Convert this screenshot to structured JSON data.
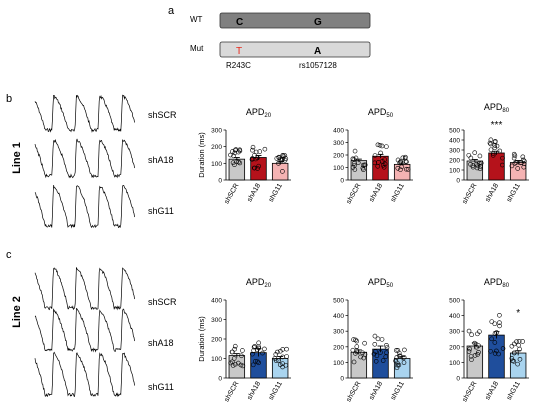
{
  "panels": {
    "a": "a",
    "b": "b",
    "c": "c"
  },
  "schematic": {
    "wt_label": "WT",
    "mut_label": "Mut",
    "wt_letters": [
      "C",
      "G"
    ],
    "mut_letters": [
      "T",
      "A"
    ],
    "variant_labels": [
      "R243C",
      "rs1057128"
    ],
    "colors": {
      "wt_bar": "#808080",
      "mut_bar": "#d9d9d9",
      "mutation": "#e8291c"
    }
  },
  "lines": [
    {
      "label": "Line 1",
      "traces": [
        "shSCR",
        "shA18",
        "shG11"
      ]
    },
    {
      "label": "Line 2",
      "traces": [
        "shSCR",
        "shA18",
        "shG11"
      ]
    }
  ],
  "chart_data": [
    {
      "type": "bar",
      "line": "Line 1",
      "title": "APD",
      "title_sub": "20",
      "ylabel": "Duration (ms)",
      "categories": [
        "shSCR",
        "shA18",
        "shG11"
      ],
      "values": [
        125,
        135,
        100
      ],
      "sem": [
        10,
        12,
        8
      ],
      "ylim": [
        0,
        300
      ],
      "yticks": [
        0,
        100,
        200,
        300
      ],
      "significance": [
        "",
        "",
        ""
      ],
      "colors": [
        "#c8c8c8",
        "#b5121b",
        "#f5b3b3"
      ]
    },
    {
      "type": "bar",
      "line": "Line 1",
      "title": "APD",
      "title_sub": "50",
      "ylabel": "",
      "categories": [
        "shSCR",
        "shA18",
        "shG11"
      ],
      "values": [
        155,
        190,
        125
      ],
      "sem": [
        12,
        15,
        10
      ],
      "ylim": [
        0,
        400
      ],
      "yticks": [
        0,
        100,
        200,
        300,
        400
      ],
      "significance": [
        "",
        "",
        ""
      ],
      "colors": [
        "#c8c8c8",
        "#b5121b",
        "#f5b3b3"
      ]
    },
    {
      "type": "bar",
      "line": "Line 1",
      "title": "APD",
      "title_sub": "80",
      "ylabel": "",
      "categories": [
        "shSCR",
        "shA18",
        "shG11"
      ],
      "values": [
        190,
        270,
        175
      ],
      "sem": [
        15,
        18,
        20
      ],
      "ylim": [
        0,
        500
      ],
      "yticks": [
        0,
        100,
        200,
        300,
        400,
        500
      ],
      "significance": [
        "",
        "***",
        ""
      ],
      "colors": [
        "#c8c8c8",
        "#b5121b",
        "#f5b3b3"
      ]
    },
    {
      "type": "bar",
      "line": "Line 2",
      "title": "APD",
      "title_sub": "20",
      "ylabel": "Duration (ms)",
      "categories": [
        "shSCR",
        "shA18",
        "shG11"
      ],
      "values": [
        115,
        130,
        100
      ],
      "sem": [
        10,
        20,
        10
      ],
      "ylim": [
        0,
        400
      ],
      "yticks": [
        0,
        100,
        200,
        300,
        400
      ],
      "significance": [
        "",
        "",
        ""
      ],
      "colors": [
        "#c8c8c8",
        "#1f4e9c",
        "#a9d4ef"
      ]
    },
    {
      "type": "bar",
      "line": "Line 2",
      "title": "APD",
      "title_sub": "50",
      "ylabel": "",
      "categories": [
        "shSCR",
        "shA18",
        "shG11"
      ],
      "values": [
        165,
        185,
        125
      ],
      "sem": [
        15,
        20,
        12
      ],
      "ylim": [
        0,
        500
      ],
      "yticks": [
        0,
        100,
        200,
        300,
        400,
        500
      ],
      "significance": [
        "",
        "",
        ""
      ],
      "colors": [
        "#c8c8c8",
        "#1f4e9c",
        "#a9d4ef"
      ]
    },
    {
      "type": "bar",
      "line": "Line 2",
      "title": "APD",
      "title_sub": "80",
      "ylabel": "",
      "categories": [
        "shSCR",
        "shA18",
        "shG11"
      ],
      "values": [
        205,
        275,
        160
      ],
      "sem": [
        20,
        22,
        15
      ],
      "ylim": [
        0,
        500
      ],
      "yticks": [
        0,
        100,
        200,
        300,
        400,
        500
      ],
      "significance": [
        "",
        "",
        "*"
      ],
      "colors": [
        "#c8c8c8",
        "#1f4e9c",
        "#a9d4ef"
      ]
    }
  ]
}
